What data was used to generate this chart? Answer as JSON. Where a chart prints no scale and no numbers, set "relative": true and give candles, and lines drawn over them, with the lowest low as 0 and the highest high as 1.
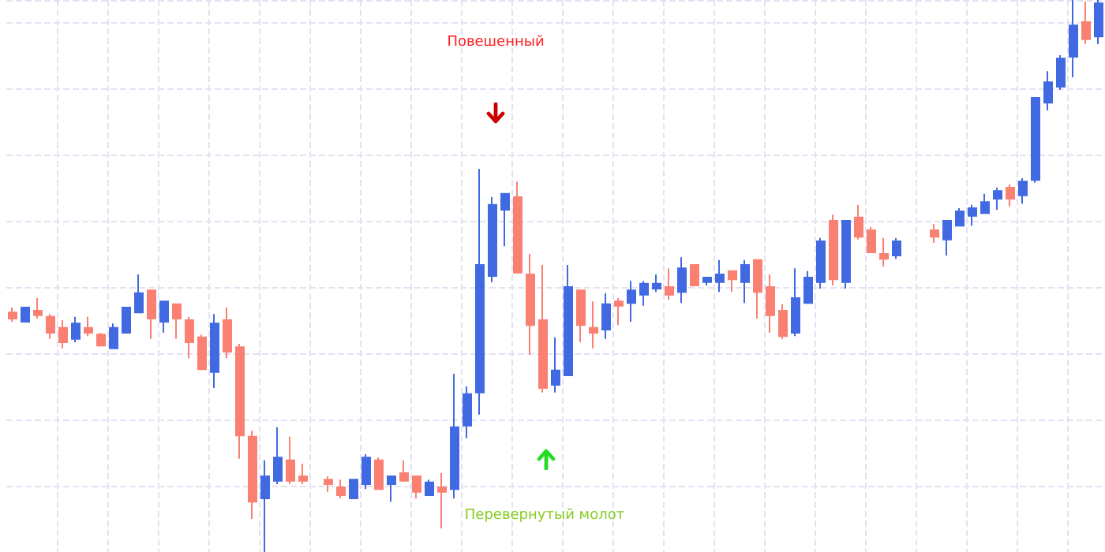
{
  "chart_data": {
    "type": "candlestick",
    "relative": true,
    "grid": true,
    "tick_labels": false,
    "annotations": [
      "Повешенный",
      "Перевернутый молот"
    ],
    "categories": [
      null,
      null,
      null,
      null,
      null,
      null,
      null,
      null,
      null,
      null,
      null,
      null,
      null,
      null,
      null,
      null,
      null,
      null,
      null,
      null,
      null,
      null,
      null,
      null,
      null,
      null,
      null,
      null,
      null,
      null,
      null,
      null,
      null,
      null,
      null,
      null,
      null,
      null,
      null,
      null,
      null,
      null,
      null,
      null,
      null,
      null,
      null,
      null,
      null,
      null,
      null,
      null,
      null,
      null,
      null,
      null,
      null,
      null,
      null,
      null,
      null,
      null,
      null,
      null,
      null,
      null,
      null,
      null,
      null,
      null,
      null,
      null,
      null,
      null,
      null,
      null,
      null,
      null,
      null,
      null,
      null,
      null,
      null,
      null,
      null,
      null,
      null
    ],
    "ohlc": [
      [
        0.434,
        0.443,
        0.417,
        0.423
      ],
      [
        0.417,
        0.443,
        0.417,
        0.443
      ],
      [
        0.437,
        0.46,
        0.423,
        0.429
      ],
      [
        0.426,
        0.431,
        0.386,
        0.397
      ],
      [
        0.406,
        0.42,
        0.369,
        0.38
      ],
      [
        0.386,
        0.426,
        0.38,
        0.414
      ],
      [
        0.406,
        0.426,
        0.391,
        0.397
      ],
      [
        0.394,
        0.397,
        0.374,
        0.374
      ],
      [
        0.369,
        0.414,
        0.369,
        0.406
      ],
      [
        0.397,
        0.443,
        0.397,
        0.443
      ],
      [
        0.434,
        0.503,
        0.434,
        0.469
      ],
      [
        0.474,
        0.474,
        0.386,
        0.423
      ],
      [
        0.417,
        0.454,
        0.397,
        0.454
      ],
      [
        0.449,
        0.449,
        0.386,
        0.423
      ],
      [
        0.42,
        0.426,
        0.351,
        0.38
      ],
      [
        0.389,
        0.394,
        0.331,
        0.331
      ],
      [
        0.326,
        0.431,
        0.297,
        0.414
      ],
      [
        0.42,
        0.443,
        0.351,
        0.363
      ],
      [
        0.371,
        0.377,
        0.169,
        0.211
      ],
      [
        0.209,
        0.22,
        0.06,
        0.091
      ],
      [
        0.097,
        0.166,
        0,
        0.137
      ],
      [
        0.129,
        0.226,
        0.123,
        0.171
      ],
      [
        0.166,
        0.209,
        0.123,
        0.129
      ],
      [
        0.137,
        0.16,
        0.123,
        0.129
      ],
      null,
      [
        0.131,
        0.137,
        0.109,
        0.123
      ],
      [
        0.117,
        0.131,
        0.097,
        0.103
      ],
      [
        0.097,
        0.131,
        0.097,
        0.131
      ],
      [
        0.123,
        0.177,
        0.114,
        0.171
      ],
      [
        0.166,
        0.171,
        0.114,
        0.114
      ],
      [
        0.123,
        0.137,
        0.091,
        0.137
      ],
      [
        0.143,
        0.166,
        0.129,
        0.129
      ],
      [
        0.137,
        0.137,
        0.097,
        0.109
      ],
      [
        0.103,
        0.131,
        0.103,
        0.126
      ],
      [
        0.117,
        0.143,
        0.043,
        0.109
      ],
      [
        0.114,
        0.323,
        0.097,
        0.226
      ],
      [
        0.229,
        0.3,
        0.206,
        0.286
      ],
      [
        0.289,
        0.694,
        0.249,
        0.52
      ],
      [
        0.5,
        0.643,
        0.489,
        0.629
      ],
      [
        0.62,
        0.649,
        0.554,
        0.649
      ],
      [
        0.643,
        0.671,
        0.506,
        0.506
      ],
      [
        0.503,
        0.54,
        0.357,
        0.411
      ],
      [
        0.42,
        0.52,
        0.289,
        0.297
      ],
      [
        0.303,
        0.389,
        0.289,
        0.329
      ],
      [
        0.32,
        0.52,
        0.32,
        0.48
      ],
      [
        0.474,
        0.474,
        0.38,
        0.411
      ],
      [
        0.406,
        0.454,
        0.369,
        0.397
      ],
      [
        0.403,
        0.469,
        0.386,
        0.449
      ],
      [
        0.454,
        0.46,
        0.411,
        0.446
      ],
      [
        0.451,
        0.491,
        0.417,
        0.474
      ],
      [
        0.466,
        0.491,
        0.446,
        0.486
      ],
      [
        0.477,
        0.503,
        0.471,
        0.486
      ],
      [
        0.48,
        0.514,
        0.457,
        0.466
      ],
      [
        0.471,
        0.534,
        0.451,
        0.514
      ],
      [
        0.52,
        0.52,
        0.483,
        0.483
      ],
      [
        0.489,
        0.497,
        0.483,
        0.497
      ],
      [
        0.489,
        0.529,
        0.471,
        0.503
      ],
      [
        0.509,
        0.509,
        0.471,
        0.494
      ],
      [
        0.489,
        0.529,
        0.451,
        0.52
      ],
      [
        0.529,
        0.529,
        0.423,
        0.471
      ],
      [
        0.48,
        0.503,
        0.397,
        0.429
      ],
      [
        0.437,
        0.449,
        0.386,
        0.391
      ],
      [
        0.397,
        0.514,
        0.391,
        0.46
      ],
      [
        0.451,
        0.509,
        0.451,
        0.497
      ],
      [
        0.489,
        0.569,
        0.477,
        0.563
      ],
      [
        0.6,
        0.611,
        0.483,
        0.494
      ],
      [
        0.489,
        0.6,
        0.477,
        0.6
      ],
      [
        0.606,
        0.629,
        0.566,
        0.571
      ],
      [
        0.583,
        0.589,
        0.543,
        0.543
      ],
      [
        0.54,
        0.569,
        0.517,
        0.531
      ],
      [
        0.537,
        0.569,
        0.531,
        0.563
      ],
      null,
      null,
      [
        0.583,
        0.594,
        0.56,
        0.571
      ],
      [
        0.566,
        0.6,
        0.537,
        0.6
      ],
      [
        0.591,
        0.623,
        0.591,
        0.617
      ],
      [
        0.609,
        0.629,
        0.591,
        0.623
      ],
      [
        0.614,
        0.649,
        0.614,
        0.634
      ],
      [
        0.64,
        0.66,
        0.62,
        0.654
      ],
      [
        0.66,
        0.666,
        0.626,
        0.64
      ],
      [
        0.646,
        0.677,
        0.631,
        0.671
      ],
      [
        0.674,
        0.823,
        0.669,
        0.823
      ],
      [
        0.814,
        0.871,
        0.8,
        0.851
      ],
      [
        0.843,
        0.9,
        0.837,
        0.894
      ],
      [
        0.897,
        1,
        0.86,
        0.954
      ],
      [
        0.96,
        0.997,
        0.92,
        0.929
      ],
      [
        0.934,
        1,
        0.92,
        0.994
      ]
    ]
  }
}
